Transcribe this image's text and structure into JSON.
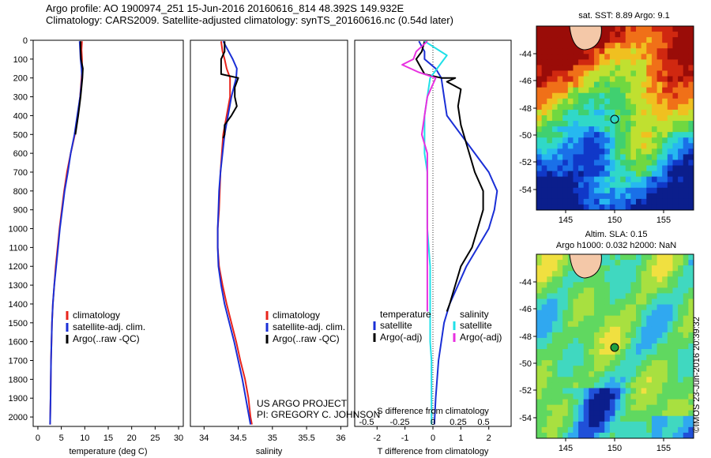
{
  "header": {
    "line1": "Argo profile: AO 1900974_251 15-Jun-2016 20160616_814 48.392S 149.932E",
    "line2": "Climatology: CARS2009. Satellite-adjusted climatology: synTS_20160616.nc (0.54d later)"
  },
  "colors": {
    "climatology": "#e8241c",
    "satellite": "#1a2fd6",
    "argo": "#000000",
    "satellite_diff": "#20e0e8",
    "argo_diff": "#e830e0"
  },
  "panel_texts": {
    "project_line1": "US ARGO PROJECT",
    "project_line2": "PI: GREGORY C. JOHNSON",
    "s_axis_title": "S difference from climatology"
  },
  "maps": {
    "sst": {
      "title": "sat. SST: 8.89 Argo: 9.1",
      "yticks": [
        "-44",
        "-46",
        "-48",
        "-50",
        "-52",
        "-54"
      ],
      "xticks": [
        "145",
        "150",
        "155"
      ]
    },
    "sla": {
      "title1": "Altim. SLA: 0.15",
      "title2": "Argo h1000: 0.032 h2000: NaN",
      "yticks": [
        "-44",
        "-46",
        "-48",
        "-50",
        "-52",
        "-54"
      ],
      "xticks": [
        "145",
        "150",
        "155"
      ]
    }
  },
  "watermark": "©IMOS 23-Jun-2016 20:39:32",
  "chart_data": [
    {
      "type": "line",
      "xlabel": "temperature (deg C)",
      "ylabel": "",
      "xlim": [
        -1,
        31
      ],
      "ylim": [
        2050,
        0
      ],
      "xticks": [
        0,
        5,
        10,
        15,
        20,
        25,
        30
      ],
      "yticks": [
        0,
        100,
        200,
        300,
        400,
        500,
        600,
        700,
        800,
        900,
        1000,
        1100,
        1200,
        1300,
        1400,
        1500,
        1600,
        1700,
        1800,
        1900,
        2000
      ],
      "legend": [
        "climatology",
        "satellite-adj. clim.",
        "Argo(..raw -QC)"
      ],
      "series": [
        {
          "name": "climatology",
          "color_key": "climatology",
          "points": [
            [
              9.4,
              5
            ],
            [
              9.3,
              50
            ],
            [
              9.4,
              100
            ],
            [
              9.4,
              150
            ],
            [
              9.3,
              200
            ],
            [
              9.0,
              300
            ],
            [
              8.5,
              400
            ],
            [
              7.9,
              500
            ],
            [
              7.0,
              600
            ],
            [
              6.2,
              700
            ],
            [
              5.6,
              800
            ],
            [
              5.1,
              900
            ],
            [
              4.6,
              1000
            ],
            [
              4.2,
              1100
            ],
            [
              3.8,
              1200
            ],
            [
              3.5,
              1300
            ],
            [
              3.2,
              1400
            ],
            [
              3.0,
              1500
            ],
            [
              2.8,
              1700
            ],
            [
              2.7,
              1900
            ],
            [
              2.6,
              2040
            ]
          ]
        },
        {
          "name": "satellite-adj. clim.",
          "color_key": "satellite",
          "points": [
            [
              8.9,
              5
            ],
            [
              9.0,
              50
            ],
            [
              9.1,
              100
            ],
            [
              9.3,
              150
            ],
            [
              9.4,
              200
            ],
            [
              9.0,
              300
            ],
            [
              8.4,
              400
            ],
            [
              7.8,
              500
            ],
            [
              7.0,
              600
            ],
            [
              6.4,
              700
            ],
            [
              5.7,
              800
            ],
            [
              5.2,
              900
            ],
            [
              4.7,
              1000
            ],
            [
              4.3,
              1100
            ],
            [
              3.9,
              1200
            ],
            [
              3.5,
              1300
            ],
            [
              3.2,
              1400
            ],
            [
              3.0,
              1500
            ],
            [
              2.8,
              1700
            ],
            [
              2.7,
              1900
            ],
            [
              2.6,
              2040
            ]
          ]
        },
        {
          "name": "Argo(..raw -QC)",
          "color_key": "argo",
          "points": [
            [
              9.1,
              5
            ],
            [
              9.1,
              50
            ],
            [
              9.2,
              100
            ],
            [
              9.6,
              150
            ],
            [
              9.5,
              200
            ],
            [
              9.1,
              300
            ],
            [
              8.6,
              400
            ],
            [
              8.0,
              500
            ]
          ]
        }
      ]
    },
    {
      "type": "line",
      "xlabel": "salinity",
      "ylabel": "",
      "xlim": [
        33.8,
        36.1
      ],
      "ylim": [
        2050,
        0
      ],
      "xticks": [
        34,
        34.5,
        35,
        35.5,
        36
      ],
      "legend": [
        "climatology",
        "satellite-adj. clim.",
        "Argo(..raw -QC)"
      ],
      "series": [
        {
          "name": "climatology",
          "color_key": "climatology",
          "points": [
            [
              34.25,
              5
            ],
            [
              34.27,
              60
            ],
            [
              34.3,
              100
            ],
            [
              34.33,
              150
            ],
            [
              34.38,
              200
            ],
            [
              34.38,
              300
            ],
            [
              34.33,
              400
            ],
            [
              34.28,
              500
            ],
            [
              34.26,
              600
            ],
            [
              34.24,
              700
            ],
            [
              34.23,
              800
            ],
            [
              34.22,
              900
            ],
            [
              34.2,
              1000
            ],
            [
              34.2,
              1100
            ],
            [
              34.22,
              1200
            ],
            [
              34.27,
              1300
            ],
            [
              34.33,
              1400
            ],
            [
              34.4,
              1500
            ],
            [
              34.47,
              1600
            ],
            [
              34.53,
              1700
            ],
            [
              34.6,
              1800
            ],
            [
              34.65,
              1900
            ],
            [
              34.68,
              2000
            ],
            [
              34.7,
              2040
            ]
          ]
        },
        {
          "name": "satellite-adj. clim.",
          "color_key": "satellite",
          "points": [
            [
              34.28,
              5
            ],
            [
              34.36,
              60
            ],
            [
              34.42,
              100
            ],
            [
              34.48,
              150
            ],
            [
              34.47,
              200
            ],
            [
              34.4,
              300
            ],
            [
              34.35,
              400
            ],
            [
              34.3,
              500
            ],
            [
              34.27,
              600
            ],
            [
              34.24,
              700
            ],
            [
              34.22,
              800
            ],
            [
              34.21,
              900
            ],
            [
              34.2,
              1000
            ],
            [
              34.2,
              1100
            ],
            [
              34.21,
              1200
            ],
            [
              34.25,
              1300
            ],
            [
              34.3,
              1400
            ],
            [
              34.37,
              1500
            ],
            [
              34.44,
              1600
            ],
            [
              34.5,
              1700
            ],
            [
              34.56,
              1800
            ],
            [
              34.61,
              1900
            ],
            [
              34.66,
              2000
            ],
            [
              34.68,
              2040
            ]
          ]
        },
        {
          "name": "Argo(..raw -QC)",
          "color_key": "argo",
          "points": [
            [
              34.3,
              5
            ],
            [
              34.3,
              60
            ],
            [
              34.25,
              100
            ],
            [
              34.25,
              180
            ],
            [
              34.5,
              200
            ],
            [
              34.45,
              250
            ],
            [
              34.45,
              300
            ],
            [
              34.48,
              350
            ],
            [
              34.4,
              400
            ],
            [
              34.3,
              450
            ],
            [
              34.3,
              500
            ],
            [
              34.28,
              520
            ]
          ]
        }
      ]
    },
    {
      "type": "line",
      "xlabel": "T difference from climatology",
      "x2label": "S difference from climatology",
      "xlim": [
        -2.8,
        2.8
      ],
      "ylim": [
        2050,
        0
      ],
      "xticks": [
        -2,
        -1,
        0,
        1,
        2
      ],
      "x2ticks": [
        "-0.5",
        "-0.25",
        "0",
        "0.25",
        "0.5"
      ],
      "legend_left": [
        "temperature",
        "satellite",
        "Argo(-adj)"
      ],
      "legend_right": [
        "salinity",
        "satellite",
        "Argo(-adj)"
      ],
      "series": [
        {
          "name": "temperature satellite",
          "color_key": "satellite",
          "points": [
            [
              -0.5,
              5
            ],
            [
              -0.3,
              60
            ],
            [
              -0.3,
              100
            ],
            [
              0.1,
              150
            ],
            [
              0.3,
              200
            ],
            [
              0.4,
              300
            ],
            [
              0.5,
              400
            ],
            [
              1.0,
              500
            ],
            [
              1.5,
              600
            ],
            [
              2.0,
              700
            ],
            [
              2.3,
              800
            ],
            [
              2.2,
              900
            ],
            [
              2.0,
              1000
            ],
            [
              1.6,
              1100
            ],
            [
              1.2,
              1200
            ],
            [
              0.9,
              1300
            ],
            [
              0.6,
              1400
            ],
            [
              0.4,
              1500
            ],
            [
              0.3,
              1600
            ],
            [
              0.2,
              1700
            ],
            [
              0.15,
              1800
            ],
            [
              0.1,
              1900
            ],
            [
              0.05,
              2040
            ]
          ]
        },
        {
          "name": "temperature Argo(-adj)",
          "color_key": "argo",
          "points": [
            [
              -0.3,
              5
            ],
            [
              -0.4,
              60
            ],
            [
              -0.6,
              100
            ],
            [
              -0.3,
              180
            ],
            [
              0.3,
              200
            ],
            [
              0.8,
              200
            ],
            [
              0.5,
              220
            ],
            [
              1.0,
              260
            ],
            [
              0.9,
              350
            ],
            [
              1.0,
              450
            ],
            [
              1.3,
              600
            ],
            [
              1.5,
              700
            ],
            [
              1.8,
              800
            ],
            [
              1.8,
              900
            ],
            [
              1.6,
              1000
            ],
            [
              1.4,
              1100
            ],
            [
              1.0,
              1200
            ],
            [
              0.8,
              1300
            ],
            [
              0.6,
              1400
            ],
            [
              0.5,
              1440
            ]
          ]
        },
        {
          "name": "salinity satellite",
          "color_key": "satellite_diff",
          "points": [
            [
              -0.3,
              5
            ],
            [
              0.5,
              80
            ],
            [
              0.3,
              120
            ],
            [
              -0.1,
              200
            ],
            [
              -0.2,
              300
            ],
            [
              -0.3,
              400
            ],
            [
              -0.3,
              500
            ],
            [
              -0.3,
              600
            ],
            [
              -0.2,
              700
            ],
            [
              -0.2,
              800
            ],
            [
              -0.2,
              900
            ],
            [
              -0.2,
              1000
            ],
            [
              -0.15,
              1100
            ],
            [
              -0.1,
              1200
            ],
            [
              -0.1,
              1300
            ],
            [
              -0.1,
              1400
            ],
            [
              -0.1,
              1500
            ],
            [
              -0.1,
              1600
            ],
            [
              -0.05,
              1700
            ],
            [
              -0.05,
              1800
            ],
            [
              -0.05,
              1900
            ],
            [
              -0.05,
              2040
            ]
          ]
        },
        {
          "name": "salinity Argo(-adj)",
          "color_key": "argo_diff",
          "points": [
            [
              -0.2,
              5
            ],
            [
              -0.6,
              60
            ],
            [
              -0.7,
              100
            ],
            [
              -1.1,
              130
            ],
            [
              -0.5,
              170
            ],
            [
              0.1,
              200
            ],
            [
              -0.2,
              300
            ],
            [
              -0.3,
              400
            ],
            [
              -0.4,
              500
            ],
            [
              -0.2,
              600
            ],
            [
              -0.2,
              700
            ],
            [
              -0.2,
              800
            ],
            [
              -0.2,
              900
            ],
            [
              -0.2,
              1000
            ],
            [
              -0.2,
              1100
            ],
            [
              -0.2,
              1200
            ],
            [
              -0.2,
              1300
            ],
            [
              -0.2,
              1400
            ],
            [
              -0.2,
              1440
            ]
          ]
        }
      ]
    }
  ]
}
